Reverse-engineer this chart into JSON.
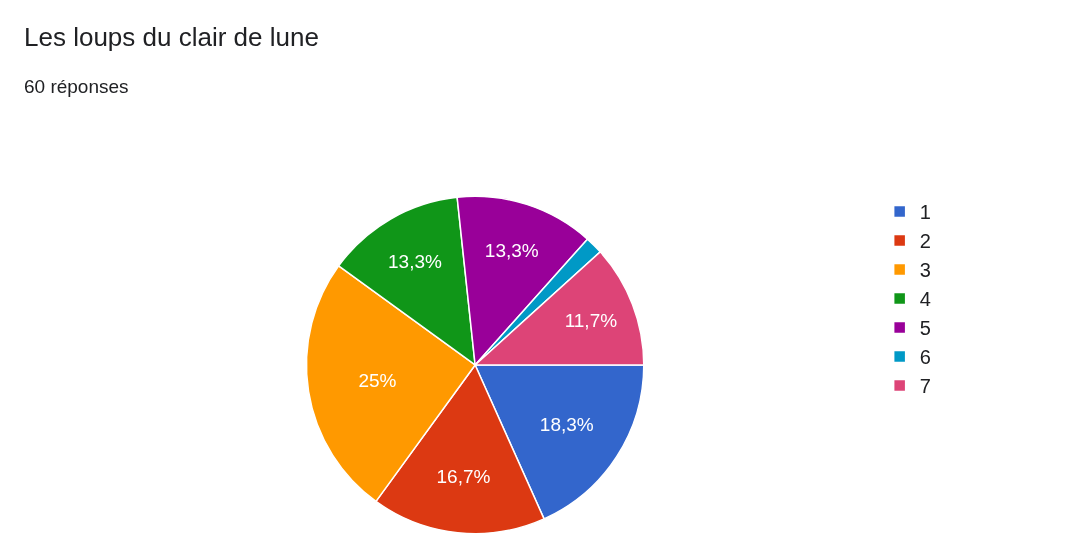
{
  "chart_data": {
    "type": "pie",
    "title": "Les loups du clair de lune",
    "subtitle": "60 réponses",
    "categories": [
      "1",
      "2",
      "3",
      "4",
      "5",
      "6",
      "7"
    ],
    "values": [
      18.3,
      16.7,
      25,
      13.3,
      13.3,
      1.7,
      11.7
    ],
    "colors": [
      "#3366cc",
      "#dc3912",
      "#ff9900",
      "#109618",
      "#990099",
      "#0099c6",
      "#dd4477"
    ],
    "value_labels": [
      "18,3%",
      "16,7%",
      "25%",
      "13,3%",
      "13,3%",
      null,
      "11,7%"
    ],
    "legend": "right"
  }
}
